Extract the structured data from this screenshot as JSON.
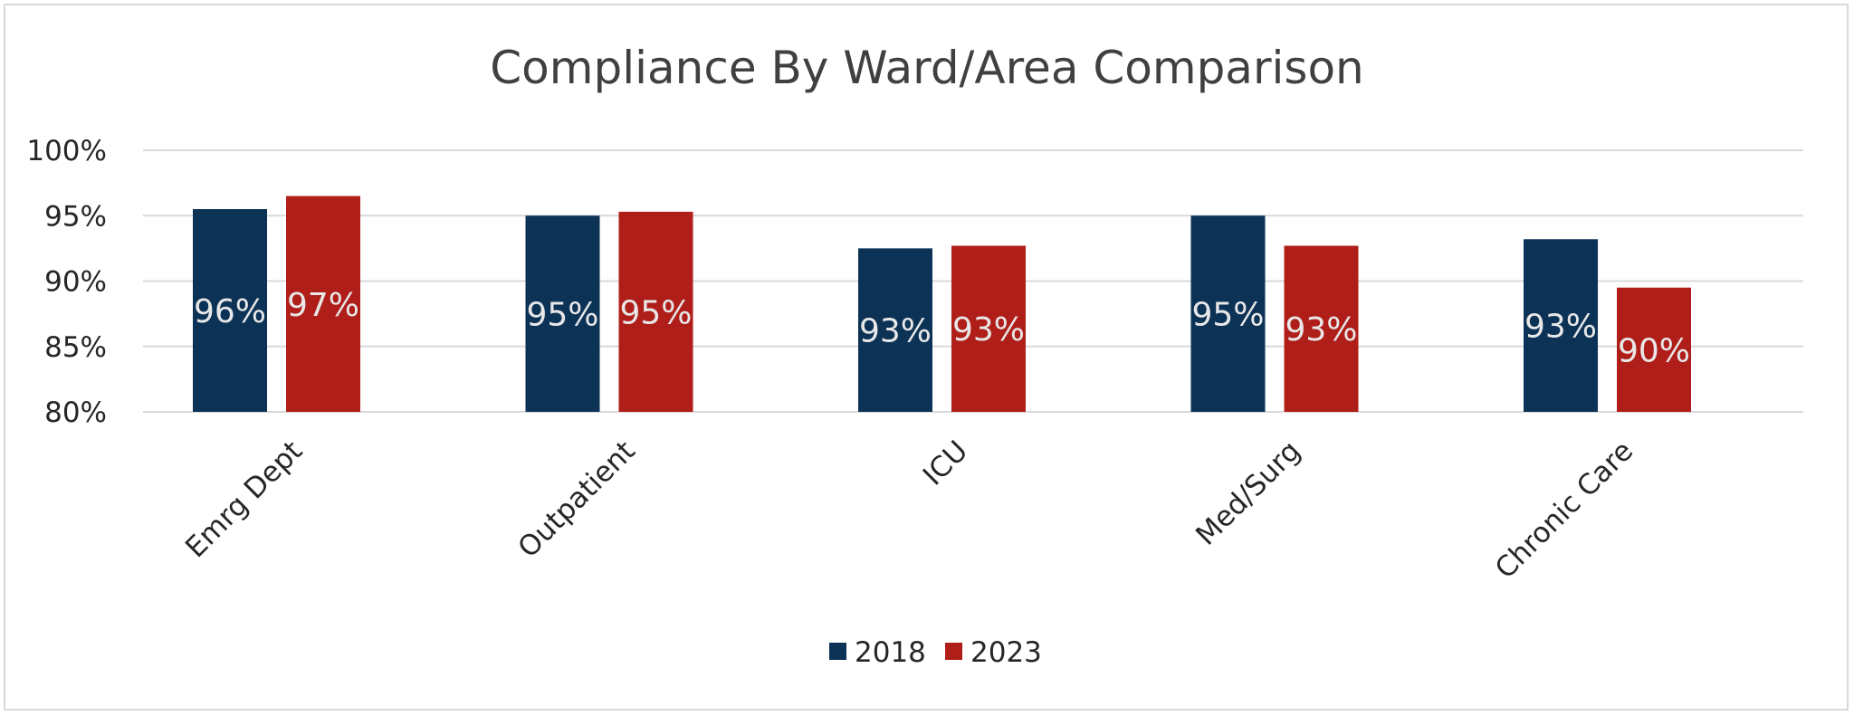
{
  "chart_data": {
    "type": "bar",
    "title": "Compliance By Ward/Area Comparison",
    "xlabel": "",
    "ylabel": "",
    "categories": [
      "Emrg Dept",
      "Outpatient",
      "ICU",
      "Med/Surg",
      "Chronic Care"
    ],
    "series": [
      {
        "name": "2018",
        "color": "#0c3256",
        "values": [
          95.5,
          95.0,
          92.5,
          95.0,
          93.2
        ],
        "labels": [
          "96%",
          "95%",
          "93%",
          "95%",
          "93%"
        ]
      },
      {
        "name": "2023",
        "color": "#b01e1a",
        "values": [
          96.5,
          95.3,
          92.7,
          92.7,
          89.5
        ],
        "labels": [
          "97%",
          "95%",
          "93%",
          "93%",
          "90%"
        ]
      }
    ],
    "ylim": [
      80,
      100
    ],
    "yticks": [
      80,
      85,
      90,
      95,
      100
    ],
    "ytick_labels": [
      "80%",
      "85%",
      "90%",
      "95%",
      "100%"
    ],
    "grid": true,
    "legend_position": "bottom"
  }
}
